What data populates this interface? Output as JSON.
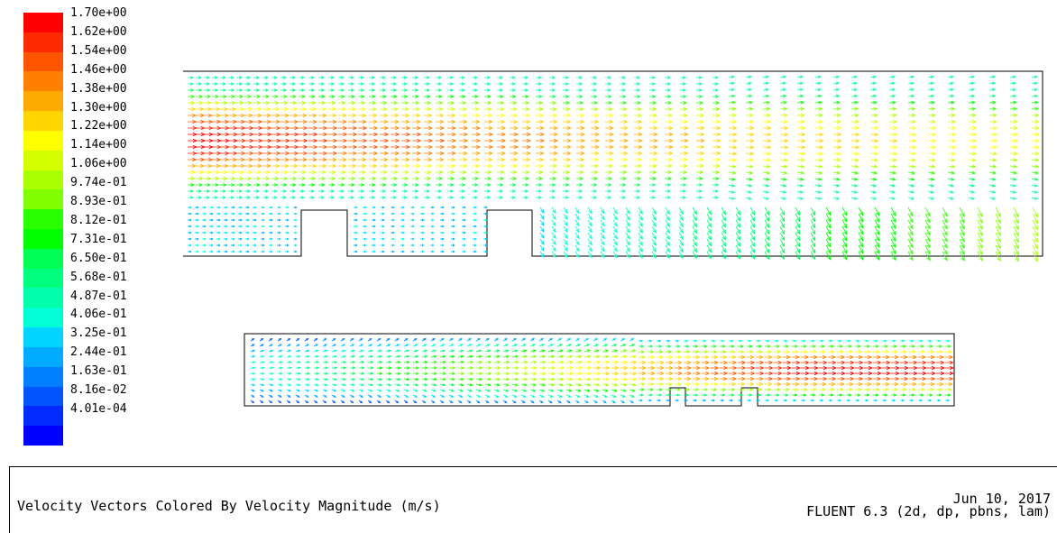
{
  "colorbar": {
    "labels": [
      "1.70e+00",
      "1.62e+00",
      "1.54e+00",
      "1.46e+00",
      "1.38e+00",
      "1.30e+00",
      "1.22e+00",
      "1.14e+00",
      "1.06e+00",
      "9.74e-01",
      "8.93e-01",
      "8.12e-01",
      "7.31e-01",
      "6.50e-01",
      "5.68e-01",
      "4.87e-01",
      "4.06e-01",
      "3.25e-01",
      "2.44e-01",
      "1.63e-01",
      "8.16e-02",
      "4.01e-04"
    ],
    "colors": [
      "#ff0000",
      "#ff2a00",
      "#ff5500",
      "#ff7f00",
      "#ffaa00",
      "#ffd400",
      "#ffff00",
      "#d4ff00",
      "#aaff00",
      "#7fff00",
      "#2aff00",
      "#00ff00",
      "#00ff55",
      "#00ff7f",
      "#00ffaa",
      "#00ffd4",
      "#00d4ff",
      "#00aaff",
      "#007fff",
      "#0055ff",
      "#002aff",
      "#0000ff"
    ]
  },
  "footer": {
    "title": "Velocity Vectors Colored By Velocity Magnitude (m/s)",
    "date": "Jun 10, 2017",
    "solver": "FLUENT 6.3 (2d, dp, pbns, lam)"
  }
}
